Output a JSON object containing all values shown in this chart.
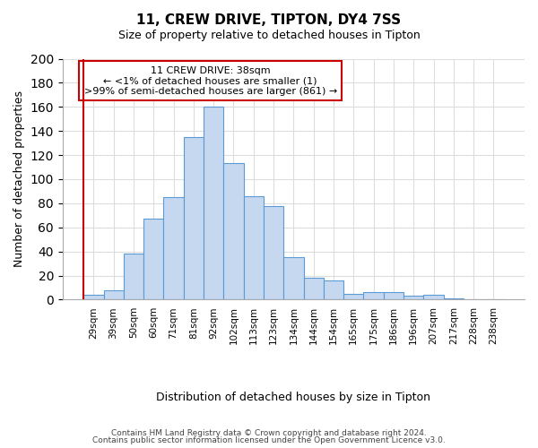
{
  "title1": "11, CREW DRIVE, TIPTON, DY4 7SS",
  "title2": "Size of property relative to detached houses in Tipton",
  "xlabel": "Distribution of detached houses by size in Tipton",
  "ylabel": "Number of detached properties",
  "bar_labels": [
    "29sqm",
    "39sqm",
    "50sqm",
    "60sqm",
    "71sqm",
    "81sqm",
    "92sqm",
    "102sqm",
    "113sqm",
    "123sqm",
    "134sqm",
    "144sqm",
    "154sqm",
    "165sqm",
    "175sqm",
    "186sqm",
    "196sqm",
    "207sqm",
    "217sqm",
    "228sqm",
    "238sqm"
  ],
  "bar_heights": [
    4,
    8,
    38,
    67,
    85,
    135,
    160,
    113,
    86,
    78,
    35,
    18,
    16,
    5,
    6,
    6,
    3,
    4,
    1,
    0,
    0
  ],
  "bar_color": "#c5d8f0",
  "bar_edge_color": "#5b9bd5",
  "highlight_line_color": "#cc0000",
  "annotation_line1": "11 CREW DRIVE: 38sqm",
  "annotation_line2": "← <1% of detached houses are smaller (1)",
  "annotation_line3": ">99% of semi-detached houses are larger (861) →",
  "annotation_box_edge_color": "#cc0000",
  "annotation_box_facecolor": "#ffffff",
  "ylim": [
    0,
    200
  ],
  "yticks": [
    0,
    20,
    40,
    60,
    80,
    100,
    120,
    140,
    160,
    180,
    200
  ],
  "footer_line1": "Contains HM Land Registry data © Crown copyright and database right 2024.",
  "footer_line2": "Contains public sector information licensed under the Open Government Licence v3.0.",
  "bg_color": "#ffffff",
  "grid_color": "#dddddd"
}
